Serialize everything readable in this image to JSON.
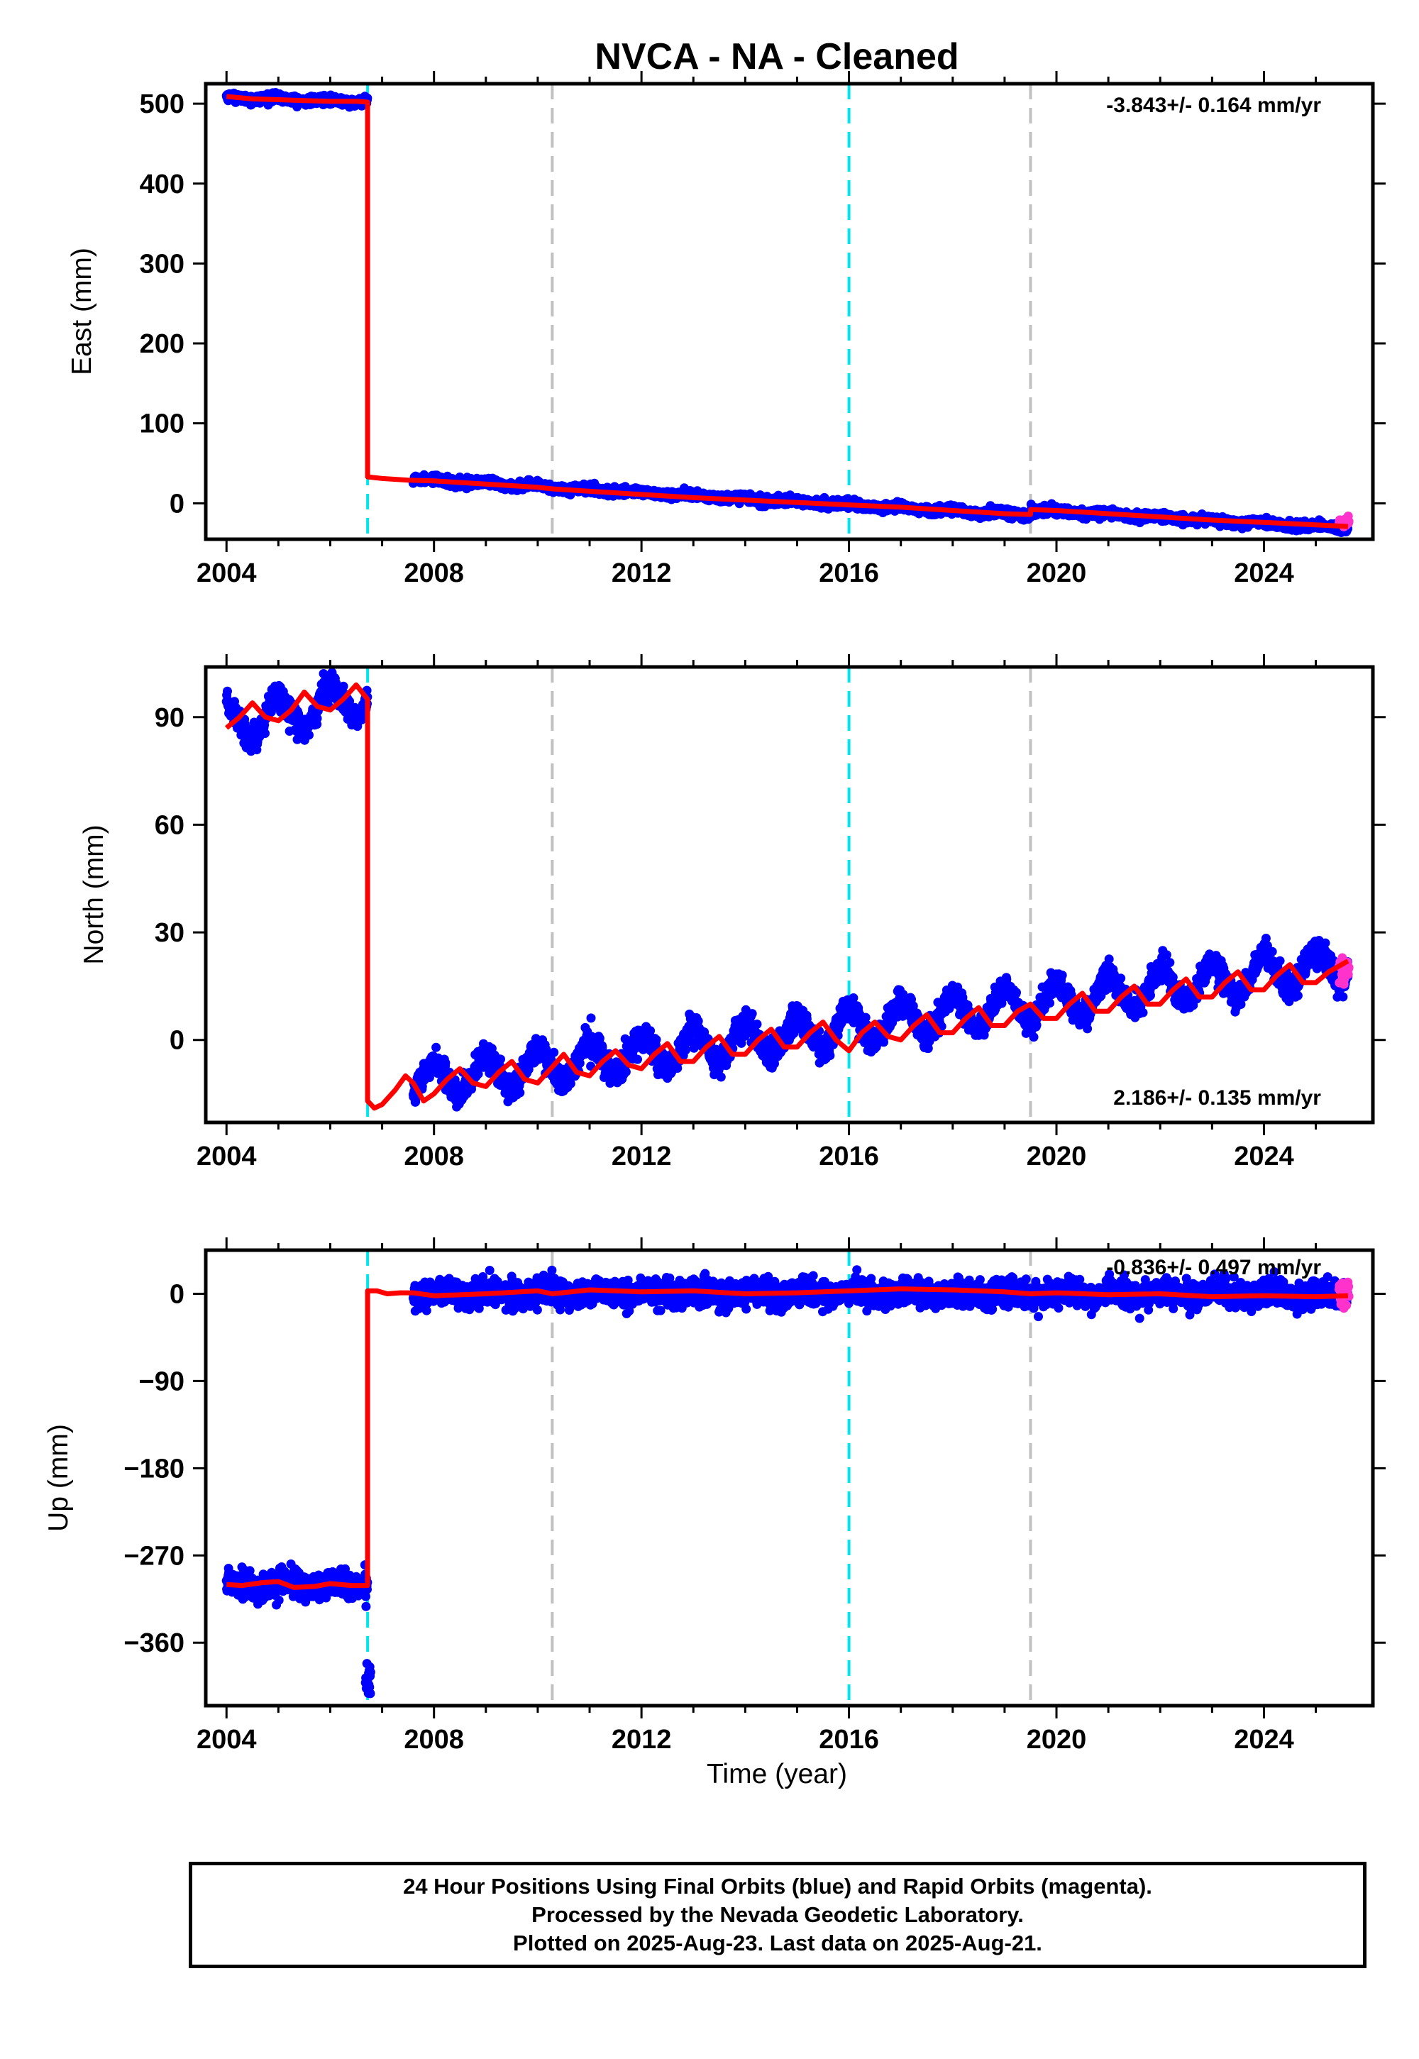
{
  "title": "NVCA  - NA - Cleaned",
  "xlabel": "Time (year)",
  "footer": [
    "24 Hour Positions Using Final Orbits (blue) and Rapid Orbits (magenta).",
    "Processed by the Nevada Geodetic Laboratory.",
    "Plotted on 2025-Aug-23. Last data on 2025-Aug-21."
  ],
  "colors": {
    "final_orbits": "#0000ff",
    "rapid_orbits": "#ff33cc",
    "model": "#ff0000",
    "antenna_change": "#00e5ee",
    "equipment_change": "#c0c0c0"
  },
  "chart_data": [
    {
      "type": "scatter",
      "panel": "East",
      "ylabel": "East (mm)",
      "rate_label": "-3.843+/- 0.164 mm/yr",
      "xlim": [
        2003.6,
        2026.1
      ],
      "ylim": [
        -45,
        525
      ],
      "xticks": [
        2004,
        2008,
        2012,
        2016,
        2020,
        2024
      ],
      "yticks": [
        0,
        100,
        200,
        300,
        400,
        500
      ],
      "vlines": [
        {
          "x": 2006.72,
          "kind": "antenna_change"
        },
        {
          "x": 2010.28,
          "kind": "equipment_change"
        },
        {
          "x": 2016.0,
          "kind": "antenna_change"
        },
        {
          "x": 2019.5,
          "kind": "equipment_change"
        }
      ],
      "series": [
        {
          "segments": [
            {
              "start": 2004.0,
              "end": 2006.72,
              "v0": 508,
              "slope": -2.2,
              "amp": 1.5,
              "phase": 0.3,
              "noise": 2.5
            },
            {
              "start": 2007.6,
              "end": 2019.5,
              "v0": 30,
              "slope": -3.8,
              "amp": 1.5,
              "phase": 0.3,
              "noise": 2.5
            },
            {
              "start": 2019.5,
              "end": 2025.62,
              "v0": -8,
              "slope": -3.8,
              "amp": 1.5,
              "phase": 0.3,
              "noise": 2.5
            }
          ]
        },
        {
          "segments": [
            {
              "start": 2025.45,
              "end": 2025.64,
              "v0": -24,
              "slope": 0,
              "amp": 0,
              "phase": 0,
              "noise": 2.5
            }
          ]
        },
        {
          "points": [
            [
              2004.0,
              509
            ],
            [
              2004.5,
              506
            ],
            [
              2005.0,
              505
            ],
            [
              2005.5,
              504
            ],
            [
              2006.0,
              503
            ],
            [
              2006.5,
              503
            ],
            [
              2006.72,
              502
            ],
            [
              2006.72,
              33
            ],
            [
              2007.0,
              31
            ],
            [
              2007.5,
              29
            ],
            [
              2008.0,
              28
            ],
            [
              2009.0,
              24
            ],
            [
              2010.0,
              20
            ],
            [
              2010.28,
              18
            ],
            [
              2011.0,
              15
            ],
            [
              2012.0,
              11
            ],
            [
              2013.0,
              7
            ],
            [
              2014.0,
              4
            ],
            [
              2015.0,
              1
            ],
            [
              2016.0,
              -2
            ],
            [
              2017.0,
              -5
            ],
            [
              2018.0,
              -9
            ],
            [
              2019.0,
              -13
            ],
            [
              2019.5,
              -14
            ],
            [
              2019.5,
              -8
            ],
            [
              2020.0,
              -9
            ],
            [
              2021.0,
              -13
            ],
            [
              2022.0,
              -17
            ],
            [
              2023.0,
              -21
            ],
            [
              2024.0,
              -24
            ],
            [
              2025.0,
              -27
            ],
            [
              2025.62,
              -29
            ]
          ]
        }
      ]
    },
    {
      "type": "scatter",
      "panel": "North",
      "ylabel": "North (mm)",
      "rate_label": "2.186+/- 0.135 mm/yr",
      "xlim": [
        2003.6,
        2026.1
      ],
      "ylim": [
        -23,
        104
      ],
      "xticks": [
        2004,
        2008,
        2012,
        2016,
        2020,
        2024
      ],
      "yticks": [
        0,
        30,
        60,
        90
      ],
      "vlines": [
        {
          "x": 2006.72,
          "kind": "antenna_change"
        },
        {
          "x": 2010.28,
          "kind": "equipment_change"
        },
        {
          "x": 2016.0,
          "kind": "antenna_change"
        },
        {
          "x": 2019.5,
          "kind": "equipment_change"
        }
      ],
      "series": [
        {
          "segments": [
            {
              "start": 2004.0,
              "end": 2006.72,
              "v0": 88,
              "slope": 2.8,
              "amp": 5,
              "phase": 0.25,
              "noise": 1.8
            },
            {
              "start": 2007.6,
              "end": 2025.62,
              "v0": -12,
              "slope": 1.85,
              "amp": 5,
              "phase": 0.25,
              "noise": 1.8
            }
          ]
        },
        {
          "segments": [
            {
              "start": 2025.45,
              "end": 2025.64,
              "v0": 20,
              "slope": 0,
              "amp": 0,
              "phase": 0,
              "noise": 2
            }
          ]
        },
        {
          "points": [
            [
              2004.0,
              87
            ],
            [
              2004.25,
              90
            ],
            [
              2004.5,
              94
            ],
            [
              2004.75,
              90
            ],
            [
              2005.0,
              89
            ],
            [
              2005.25,
              92
            ],
            [
              2005.5,
              97
            ],
            [
              2005.75,
              93
            ],
            [
              2006.0,
              92
            ],
            [
              2006.25,
              95
            ],
            [
              2006.5,
              99
            ],
            [
              2006.72,
              95
            ],
            [
              2006.72,
              -17
            ],
            [
              2006.85,
              -19
            ],
            [
              2007.0,
              -18
            ],
            [
              2007.25,
              -14
            ],
            [
              2007.45,
              -10
            ],
            [
              2007.6,
              -12
            ],
            [
              2007.8,
              -17
            ],
            [
              2008.0,
              -15
            ],
            [
              2008.25,
              -11
            ],
            [
              2008.5,
              -8
            ],
            [
              2008.75,
              -12
            ],
            [
              2009.0,
              -13
            ],
            [
              2009.25,
              -9
            ],
            [
              2009.5,
              -6
            ],
            [
              2009.75,
              -11
            ],
            [
              2010.0,
              -12
            ],
            [
              2010.25,
              -8
            ],
            [
              2010.5,
              -4
            ],
            [
              2010.75,
              -9
            ],
            [
              2011.0,
              -10
            ],
            [
              2011.25,
              -6
            ],
            [
              2011.5,
              -3
            ],
            [
              2011.75,
              -7
            ],
            [
              2012.0,
              -8
            ],
            [
              2012.25,
              -4
            ],
            [
              2012.5,
              -1
            ],
            [
              2012.75,
              -6
            ],
            [
              2013.0,
              -6
            ],
            [
              2013.25,
              -2
            ],
            [
              2013.5,
              1
            ],
            [
              2013.75,
              -4
            ],
            [
              2014.0,
              -4
            ],
            [
              2014.25,
              0
            ],
            [
              2014.5,
              3
            ],
            [
              2014.75,
              -2
            ],
            [
              2015.0,
              -2
            ],
            [
              2015.25,
              2
            ],
            [
              2015.5,
              5
            ],
            [
              2015.75,
              0
            ],
            [
              2016.0,
              -3
            ],
            [
              2016.25,
              2
            ],
            [
              2016.5,
              5
            ],
            [
              2016.75,
              1
            ],
            [
              2017.0,
              0
            ],
            [
              2017.25,
              4
            ],
            [
              2017.5,
              7
            ],
            [
              2017.75,
              2
            ],
            [
              2018.0,
              2
            ],
            [
              2018.25,
              6
            ],
            [
              2018.5,
              9
            ],
            [
              2018.75,
              4
            ],
            [
              2019.0,
              4
            ],
            [
              2019.25,
              8
            ],
            [
              2019.5,
              10
            ],
            [
              2019.75,
              6
            ],
            [
              2020.0,
              6
            ],
            [
              2020.25,
              10
            ],
            [
              2020.5,
              13
            ],
            [
              2020.75,
              8
            ],
            [
              2021.0,
              8
            ],
            [
              2021.25,
              12
            ],
            [
              2021.5,
              15
            ],
            [
              2021.75,
              10
            ],
            [
              2022.0,
              10
            ],
            [
              2022.25,
              14
            ],
            [
              2022.5,
              17
            ],
            [
              2022.75,
              12
            ],
            [
              2023.0,
              12
            ],
            [
              2023.25,
              16
            ],
            [
              2023.5,
              19
            ],
            [
              2023.75,
              14
            ],
            [
              2024.0,
              14
            ],
            [
              2024.25,
              18
            ],
            [
              2024.5,
              21
            ],
            [
              2024.75,
              16
            ],
            [
              2025.0,
              16
            ],
            [
              2025.25,
              19
            ],
            [
              2025.62,
              22
            ]
          ]
        }
      ]
    },
    {
      "type": "scatter",
      "panel": "Up",
      "ylabel": "Up (mm)",
      "rate_label": "-0.836+/- 0.497 mm/yr",
      "xlim": [
        2003.6,
        2026.1
      ],
      "ylim": [
        -425,
        45
      ],
      "xticks": [
        2004,
        2008,
        2012,
        2016,
        2020,
        2024
      ],
      "yticks": [
        0,
        -90,
        -180,
        -270,
        -360
      ],
      "vlines": [
        {
          "x": 2006.72,
          "kind": "antenna_change"
        },
        {
          "x": 2010.28,
          "kind": "equipment_change"
        },
        {
          "x": 2016.0,
          "kind": "antenna_change"
        },
        {
          "x": 2019.5,
          "kind": "equipment_change"
        }
      ],
      "series": [
        {
          "segments": [
            {
              "start": 2004.0,
              "end": 2006.72,
              "v0": -300,
              "slope": 0,
              "amp": 4,
              "phase": 0.1,
              "noise": 7
            },
            {
              "start": 2007.6,
              "end": 2025.62,
              "v0": 1,
              "slope": -0.1,
              "amp": 3,
              "phase": 0.1,
              "noise": 6.5
            },
            {
              "start": 2006.68,
              "end": 2006.78,
              "v0": -400,
              "slope": 0,
              "amp": 0,
              "phase": 0,
              "noise": 8
            }
          ]
        },
        {
          "segments": [
            {
              "start": 2025.45,
              "end": 2025.64,
              "v0": 0,
              "slope": 0,
              "amp": 0,
              "phase": 0,
              "noise": 7
            }
          ]
        },
        {
          "points": [
            [
              2004.0,
              -300
            ],
            [
              2004.3,
              -301
            ],
            [
              2004.7,
              -298
            ],
            [
              2005.0,
              -297
            ],
            [
              2005.3,
              -303
            ],
            [
              2005.7,
              -302
            ],
            [
              2006.0,
              -299
            ],
            [
              2006.4,
              -301
            ],
            [
              2006.72,
              -301
            ],
            [
              2006.72,
              3
            ],
            [
              2006.9,
              3
            ],
            [
              2007.1,
              0
            ],
            [
              2007.35,
              1
            ],
            [
              2007.6,
              1
            ],
            [
              2008.0,
              -2
            ],
            [
              2009.0,
              0
            ],
            [
              2010.0,
              3
            ],
            [
              2010.28,
              0
            ],
            [
              2011.0,
              4
            ],
            [
              2012.0,
              2
            ],
            [
              2013.0,
              3
            ],
            [
              2014.0,
              0
            ],
            [
              2015.0,
              1
            ],
            [
              2016.0,
              3
            ],
            [
              2017.0,
              5
            ],
            [
              2018.0,
              4
            ],
            [
              2019.0,
              2
            ],
            [
              2019.5,
              0
            ],
            [
              2020.0,
              1
            ],
            [
              2021.0,
              -1
            ],
            [
              2022.0,
              0
            ],
            [
              2023.0,
              -3
            ],
            [
              2024.0,
              -2
            ],
            [
              2025.0,
              -3
            ],
            [
              2025.62,
              -2
            ]
          ]
        }
      ]
    }
  ]
}
